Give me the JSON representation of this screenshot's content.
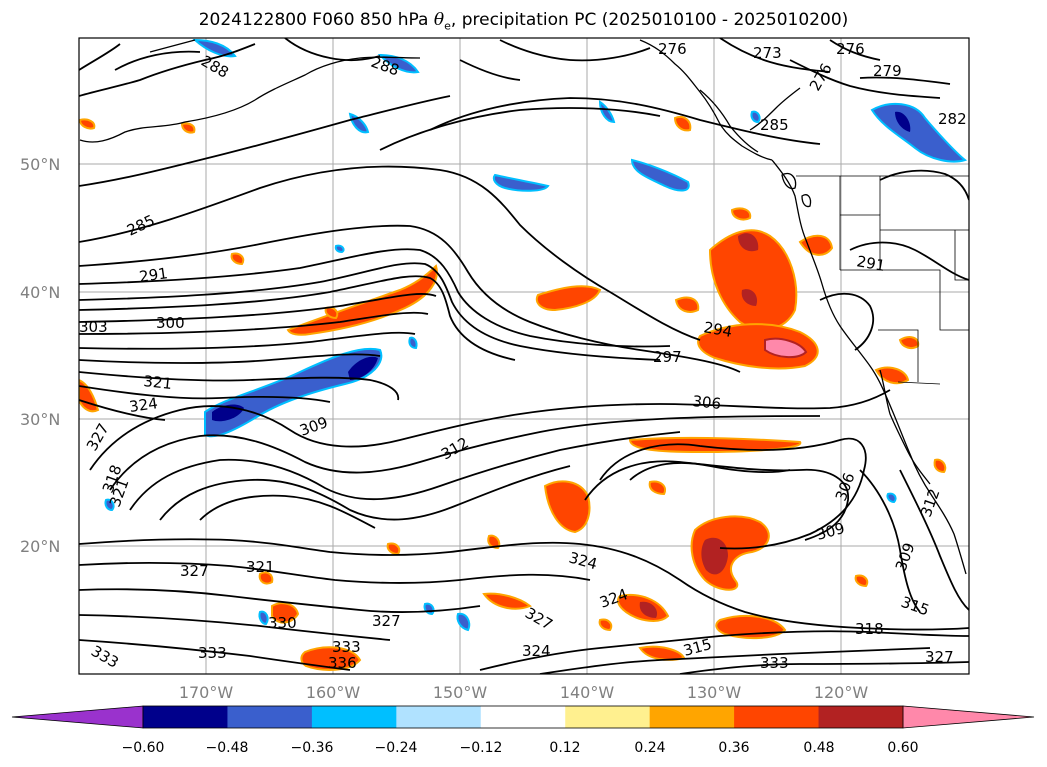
{
  "title": {
    "prefix": "2024122800 F060 850 hPa ",
    "theta": "θ",
    "theta_sub": "e",
    "suffix": ", precipitation PC (2025010100 - 2025010200)"
  },
  "map": {
    "lat_ticks": [
      "50°N",
      "40°N",
      "30°N",
      "20°N"
    ],
    "lon_ticks": [
      "170°W",
      "160°W",
      "150°W",
      "140°W",
      "130°W",
      "120°W"
    ],
    "contour_labels": [
      "288",
      "288",
      "276",
      "273",
      "276",
      "276",
      "279",
      "282",
      "285",
      "285",
      "291",
      "291",
      "294",
      "297",
      "300",
      "303",
      "306",
      "306",
      "309",
      "309",
      "309",
      "312",
      "312",
      "315",
      "315",
      "318",
      "318",
      "321",
      "321",
      "321",
      "324",
      "324",
      "324",
      "324",
      "327",
      "327",
      "327",
      "327",
      "327",
      "330",
      "333",
      "333",
      "333",
      "333",
      "336"
    ]
  },
  "colorbar": {
    "ticks": [
      "−0.60",
      "−0.48",
      "−0.36",
      "−0.24",
      "−0.12",
      "0.12",
      "0.24",
      "0.36",
      "0.48",
      "0.60"
    ],
    "colors": [
      "#9a32cd",
      "#00008b",
      "#3a5fcd",
      "#00bfff",
      "#b0e2ff",
      "#ffffff",
      "#fff08f",
      "#ffa500",
      "#ff4500",
      "#b22222",
      "#ff88aa"
    ]
  }
}
